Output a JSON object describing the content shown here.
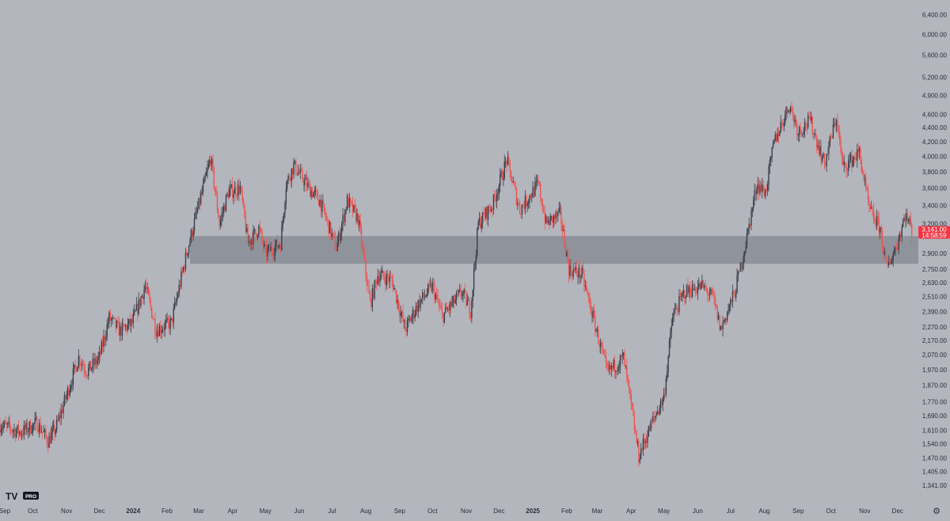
{
  "branding": {
    "logo_text": "TV",
    "logo_badge": "PRO"
  },
  "colors": {
    "background": "#b3b6bd",
    "candle_up": "#3a3f4a",
    "candle_down": "#ef5350",
    "zone": "#8b8f97",
    "axis_text": "#2a2e39",
    "price_badge": "#f23645"
  },
  "price_badge": {
    "price": "3,141.00",
    "countdown": "14:58:59"
  },
  "icons": {
    "settings": "gear-icon"
  },
  "chart_data": {
    "type": "candlestick",
    "y_scale": "log",
    "ylim": [
      1300,
      6600
    ],
    "xlim": [
      "2023-09-01",
      "2025-12-20"
    ],
    "y_ticks": [
      {
        "value": 6400,
        "label": "6,400.00"
      },
      {
        "value": 6000,
        "label": "6,000.00"
      },
      {
        "value": 5600,
        "label": "5,600.00"
      },
      {
        "value": 5200,
        "label": "5,200.00"
      },
      {
        "value": 4900,
        "label": "4,900.00"
      },
      {
        "value": 4600,
        "label": "4,600.00"
      },
      {
        "value": 4400,
        "label": "4,400.00"
      },
      {
        "value": 4200,
        "label": "4,200.00"
      },
      {
        "value": 4000,
        "label": "4,000.00"
      },
      {
        "value": 3800,
        "label": "3,800.00"
      },
      {
        "value": 3600,
        "label": "3,600.00"
      },
      {
        "value": 3400,
        "label": "3,400.00"
      },
      {
        "value": 3200,
        "label": "3,200.00"
      },
      {
        "value": 2900,
        "label": "2,900.00"
      },
      {
        "value": 2750,
        "label": "2,750.00"
      },
      {
        "value": 2630,
        "label": "2,630.00"
      },
      {
        "value": 2510,
        "label": "2,510.00"
      },
      {
        "value": 2390,
        "label": "2,390.00"
      },
      {
        "value": 2270,
        "label": "2,270.00"
      },
      {
        "value": 2170,
        "label": "2,170.00"
      },
      {
        "value": 2070,
        "label": "2,070.00"
      },
      {
        "value": 1970,
        "label": "1,970.00"
      },
      {
        "value": 1870,
        "label": "1,870.00"
      },
      {
        "value": 1770,
        "label": "1,770.00"
      },
      {
        "value": 1690,
        "label": "1,690.00"
      },
      {
        "value": 1610,
        "label": "1,610.00"
      },
      {
        "value": 1540,
        "label": "1,540.00"
      },
      {
        "value": 1470,
        "label": "1,470.00"
      },
      {
        "value": 1405,
        "label": "1,405.00"
      },
      {
        "value": 1341,
        "label": "1,341.00"
      }
    ],
    "x_ticks": [
      {
        "date": "2023-09-01",
        "label": "Sep",
        "bold": false
      },
      {
        "date": "2023-10-01",
        "label": "Oct",
        "bold": false
      },
      {
        "date": "2023-11-01",
        "label": "Nov",
        "bold": false
      },
      {
        "date": "2023-12-01",
        "label": "Dec",
        "bold": false
      },
      {
        "date": "2024-01-01",
        "label": "2024",
        "bold": true
      },
      {
        "date": "2024-02-01",
        "label": "Feb",
        "bold": false
      },
      {
        "date": "2024-03-01",
        "label": "Mar",
        "bold": false
      },
      {
        "date": "2024-04-01",
        "label": "Apr",
        "bold": false
      },
      {
        "date": "2024-05-01",
        "label": "May",
        "bold": false
      },
      {
        "date": "2024-06-01",
        "label": "Jun",
        "bold": false
      },
      {
        "date": "2024-07-01",
        "label": "Jul",
        "bold": false
      },
      {
        "date": "2024-08-01",
        "label": "Aug",
        "bold": false
      },
      {
        "date": "2024-09-01",
        "label": "Sep",
        "bold": false
      },
      {
        "date": "2024-10-01",
        "label": "Oct",
        "bold": false
      },
      {
        "date": "2024-11-01",
        "label": "Nov",
        "bold": false
      },
      {
        "date": "2024-12-01",
        "label": "Dec",
        "bold": false
      },
      {
        "date": "2025-01-01",
        "label": "2025",
        "bold": true
      },
      {
        "date": "2025-02-01",
        "label": "Feb",
        "bold": false
      },
      {
        "date": "2025-03-01",
        "label": "Mar",
        "bold": false
      },
      {
        "date": "2025-04-01",
        "label": "Apr",
        "bold": false
      },
      {
        "date": "2025-05-01",
        "label": "May",
        "bold": false
      },
      {
        "date": "2025-06-01",
        "label": "Jun",
        "bold": false
      },
      {
        "date": "2025-07-01",
        "label": "Jul",
        "bold": false
      },
      {
        "date": "2025-08-01",
        "label": "Aug",
        "bold": false
      },
      {
        "date": "2025-09-01",
        "label": "Sep",
        "bold": false
      },
      {
        "date": "2025-10-01",
        "label": "Oct",
        "bold": false
      },
      {
        "date": "2025-11-01",
        "label": "Nov",
        "bold": false
      },
      {
        "date": "2025-12-01",
        "label": "Dec",
        "bold": false
      }
    ],
    "zone": {
      "low": 2800,
      "high": 3070
    },
    "last_price": 3141,
    "close_path": [
      {
        "date": "2023-09-01",
        "close": 1640
      },
      {
        "date": "2023-09-20",
        "close": 1600
      },
      {
        "date": "2023-10-05",
        "close": 1650
      },
      {
        "date": "2023-10-15",
        "close": 1555
      },
      {
        "date": "2023-10-22",
        "close": 1620
      },
      {
        "date": "2023-11-01",
        "close": 1810
      },
      {
        "date": "2023-11-12",
        "close": 2050
      },
      {
        "date": "2023-11-20",
        "close": 1960
      },
      {
        "date": "2023-12-01",
        "close": 2050
      },
      {
        "date": "2023-12-10",
        "close": 2340
      },
      {
        "date": "2023-12-20",
        "close": 2240
      },
      {
        "date": "2023-12-31",
        "close": 2300
      },
      {
        "date": "2024-01-12",
        "close": 2600
      },
      {
        "date": "2024-01-22",
        "close": 2250
      },
      {
        "date": "2024-02-05",
        "close": 2300
      },
      {
        "date": "2024-02-20",
        "close": 2950
      },
      {
        "date": "2024-03-01",
        "close": 3400
      },
      {
        "date": "2024-03-12",
        "close": 3980
      },
      {
        "date": "2024-03-20",
        "close": 3200
      },
      {
        "date": "2024-03-28",
        "close": 3550
      },
      {
        "date": "2024-04-08",
        "close": 3600
      },
      {
        "date": "2024-04-15",
        "close": 3000
      },
      {
        "date": "2024-04-25",
        "close": 3150
      },
      {
        "date": "2024-05-01",
        "close": 2900
      },
      {
        "date": "2024-05-15",
        "close": 3000
      },
      {
        "date": "2024-05-20",
        "close": 3650
      },
      {
        "date": "2024-05-27",
        "close": 3880
      },
      {
        "date": "2024-06-10",
        "close": 3600
      },
      {
        "date": "2024-06-20",
        "close": 3450
      },
      {
        "date": "2024-07-05",
        "close": 2950
      },
      {
        "date": "2024-07-15",
        "close": 3450
      },
      {
        "date": "2024-07-25",
        "close": 3250
      },
      {
        "date": "2024-08-05",
        "close": 2450
      },
      {
        "date": "2024-08-12",
        "close": 2700
      },
      {
        "date": "2024-08-25",
        "close": 2650
      },
      {
        "date": "2024-09-06",
        "close": 2250
      },
      {
        "date": "2024-09-18",
        "close": 2450
      },
      {
        "date": "2024-10-01",
        "close": 2600
      },
      {
        "date": "2024-10-10",
        "close": 2350
      },
      {
        "date": "2024-10-28",
        "close": 2550
      },
      {
        "date": "2024-11-05",
        "close": 2400
      },
      {
        "date": "2024-11-12",
        "close": 3200
      },
      {
        "date": "2024-11-25",
        "close": 3400
      },
      {
        "date": "2024-12-08",
        "close": 3950
      },
      {
        "date": "2024-12-20",
        "close": 3350
      },
      {
        "date": "2025-01-06",
        "close": 3650
      },
      {
        "date": "2025-01-13",
        "close": 3200
      },
      {
        "date": "2025-01-26",
        "close": 3300
      },
      {
        "date": "2025-02-03",
        "close": 2750
      },
      {
        "date": "2025-02-15",
        "close": 2700
      },
      {
        "date": "2025-02-28",
        "close": 2250
      },
      {
        "date": "2025-03-10",
        "close": 1950
      },
      {
        "date": "2025-03-25",
        "close": 2050
      },
      {
        "date": "2025-04-08",
        "close": 1480
      },
      {
        "date": "2025-04-20",
        "close": 1650
      },
      {
        "date": "2025-05-01",
        "close": 1800
      },
      {
        "date": "2025-05-09",
        "close": 2350
      },
      {
        "date": "2025-05-20",
        "close": 2550
      },
      {
        "date": "2025-06-05",
        "close": 2600
      },
      {
        "date": "2025-06-15",
        "close": 2500
      },
      {
        "date": "2025-06-22",
        "close": 2250
      },
      {
        "date": "2025-07-05",
        "close": 2550
      },
      {
        "date": "2025-07-15",
        "close": 3000
      },
      {
        "date": "2025-07-25",
        "close": 3650
      },
      {
        "date": "2025-08-02",
        "close": 3550
      },
      {
        "date": "2025-08-10",
        "close": 4200
      },
      {
        "date": "2025-08-24",
        "close": 4750
      },
      {
        "date": "2025-09-01",
        "close": 4350
      },
      {
        "date": "2025-09-12",
        "close": 4500
      },
      {
        "date": "2025-09-25",
        "close": 3900
      },
      {
        "date": "2025-10-06",
        "close": 4550
      },
      {
        "date": "2025-10-12",
        "close": 3850
      },
      {
        "date": "2025-10-27",
        "close": 4050
      },
      {
        "date": "2025-11-05",
        "close": 3350
      },
      {
        "date": "2025-11-15",
        "close": 3150
      },
      {
        "date": "2025-11-21",
        "close": 2750
      },
      {
        "date": "2025-12-01",
        "close": 3000
      },
      {
        "date": "2025-12-08",
        "close": 3300
      },
      {
        "date": "2025-12-14",
        "close": 3141
      }
    ]
  }
}
